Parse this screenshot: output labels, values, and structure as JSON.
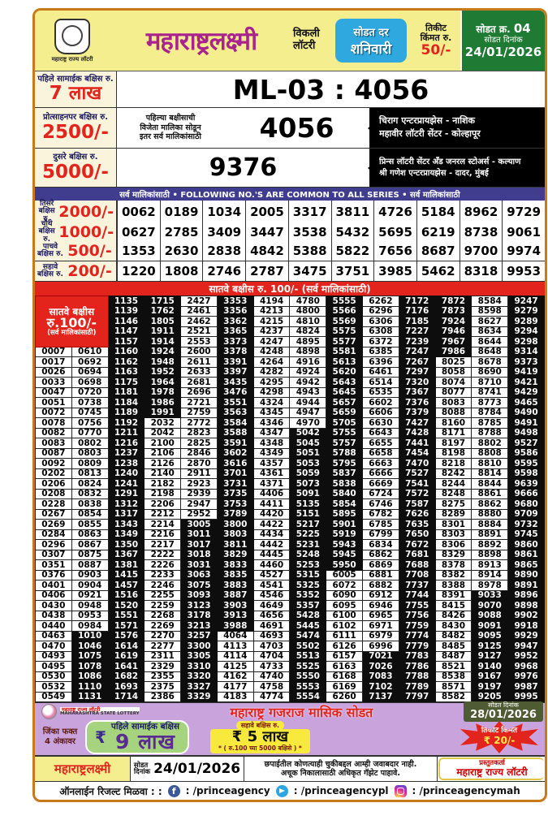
{
  "header": {
    "org_small": "महाराष्ट्र राज्य लॉटरी",
    "title": "महाराष्ट्रलक्ष्मी",
    "weekly_line1": "विकली",
    "weekly_line2": "लॉटरी",
    "draw_day_label": "सोडत दर",
    "draw_day": "शनिवारी",
    "ticket_label1": "तिकीट",
    "ticket_label2": "किंमत रु.",
    "ticket_price": "50/-",
    "draw_no_label": "सोडत क्र.",
    "draw_no": "04",
    "draw_date_label": "सोडत दिनांक",
    "draw_date": "24/01/2026",
    "accent_yellow": "#f5ee8e",
    "accent_magenta": "#a9238f",
    "accent_blue": "#2fa8df",
    "accent_green": "#1f7a33"
  },
  "first_prize": {
    "label": "पहिले सामाईक बक्षिस रु.",
    "amount": "7 लाख",
    "result": "ML-03 : 4056"
  },
  "consolation": {
    "label": "प्रोत्साहनपर बक्षिस रु.",
    "amount": "2500/-",
    "note1": "पहिल्या बक्षीसाची",
    "note2": "विजेता मालिका सोडून",
    "note3": "इतर सर्व मालिकांसाठी",
    "number": "4056",
    "sellers": [
      "चिराग एन्टरप्रायझेस - नाशिक",
      "महावीर लॉटरी सेंटर - कोल्हापूर"
    ]
  },
  "second_prize": {
    "label": "दुसरे बक्षिस रु.",
    "amount": "5000/-",
    "number": "9376",
    "sellers": [
      "प्रिन्स लॉटरी सेंटर अँड जनरल स्टोअर्स - कल्याण",
      "श्री गणेश एन्टरप्रायझेस - दादर, मुंबई"
    ]
  },
  "common_bar": "सर्व मालिकांसाठी  •  FOLLOWING NO.'S ARE COMMON TO ALL SERIES  •  सर्व मालिकांसाठी",
  "common_prizes": [
    {
      "label1": "तिसरे",
      "label2": "बक्षिस रु.",
      "amount": "2000/-",
      "numbers": [
        "0062",
        "0189",
        "1034",
        "2005",
        "3317",
        "3811",
        "4726",
        "5184",
        "8962",
        "9729"
      ]
    },
    {
      "label1": "चौथे",
      "label2": "बक्षिस रु.",
      "amount": "1000/-",
      "numbers": [
        "0627",
        "2785",
        "3409",
        "3447",
        "3538",
        "5432",
        "5695",
        "6219",
        "8738",
        "9061"
      ]
    },
    {
      "label1": "पाचवे",
      "label2": "बक्षिस रु.",
      "amount": "500/-",
      "numbers": [
        "1353",
        "2630",
        "2838",
        "4842",
        "5388",
        "5822",
        "7656",
        "8687",
        "9700",
        "9974"
      ]
    },
    {
      "label1": "सहावे",
      "label2": "बक्षिस रु.",
      "amount": "200/-",
      "numbers": [
        "1220",
        "1808",
        "2746",
        "2787",
        "3475",
        "3751",
        "3985",
        "5462",
        "8318",
        "9953"
      ]
    }
  ],
  "seventh_bar": "सातवे बक्षीस रु. 100/-  (सर्व मालिकांसाठी)",
  "seventh_prize": {
    "box_lines": [
      "सातवे बक्षीस",
      "रु.100/-",
      "(सर्व मालिकांसाठी)"
    ],
    "left_col1": [
      "0007",
      "0017",
      "0026",
      "0033",
      "0047",
      "0051",
      "0072",
      "0078",
      "0082",
      "0083",
      "0087",
      "0092",
      "0202",
      "0206",
      "0208",
      "0228",
      "0267",
      "0269",
      "0284",
      "0296",
      "0307",
      "0351",
      "0376",
      "0401",
      "0406",
      "0430",
      "0438",
      "0440",
      "0463",
      "0470",
      "0493",
      "0495",
      "0530",
      "0532",
      "0549"
    ],
    "left_col2": [
      "0610",
      "0692",
      "0694",
      "0698",
      "0720",
      "0738",
      "0745",
      "0756",
      "0770",
      "0802",
      "0803",
      "0809",
      "0813",
      "0824",
      "0832",
      "0838",
      "0854",
      "0855",
      "0863",
      "0867",
      "0875",
      "0887",
      "0903",
      "0904",
      "0921",
      "0948",
      "0953",
      "0984",
      "1010",
      "1046",
      "1075",
      "1078",
      "1086",
      "1110",
      "1131"
    ],
    "columns": [
      [
        "1135",
        "1139",
        "1146",
        "1147",
        "1157",
        "1160",
        "1162",
        "1163",
        "1175",
        "1181",
        "1184",
        "1189",
        "1192",
        "1211",
        "1216",
        "1237",
        "1238",
        "1240",
        "1241",
        "1291",
        "1312",
        "1317",
        "1343",
        "1349",
        "1350",
        "1367",
        "1381",
        "1415",
        "1457",
        "1516",
        "1520",
        "1551",
        "1571",
        "1576",
        "1614",
        "1619",
        "1641",
        "1682",
        "1693",
        "1714"
      ],
      [
        "1715",
        "1762",
        "1805",
        "1911",
        "1914",
        "1924",
        "1948",
        "1952",
        "1964",
        "1978",
        "1986",
        "1991",
        "2032",
        "2042",
        "2100",
        "2106",
        "2126",
        "2140",
        "2182",
        "2198",
        "2206",
        "2212",
        "2214",
        "2216",
        "2217",
        "2222",
        "2226",
        "2233",
        "2246",
        "2255",
        "2259",
        "2268",
        "2269",
        "2270",
        "2277",
        "2311",
        "2329",
        "2355",
        "2375",
        "2386"
      ],
      [
        "2427",
        "2461",
        "2462",
        "2521",
        "2553",
        "2600",
        "2611",
        "2633",
        "2681",
        "2696",
        "2721",
        "2759",
        "2772",
        "2823",
        "2825",
        "2846",
        "2870",
        "2911",
        "2923",
        "2939",
        "2947",
        "2952",
        "3005",
        "3011",
        "3017",
        "3018",
        "3031",
        "3063",
        "3075",
        "3093",
        "3123",
        "3178",
        "3213",
        "3257",
        "3300",
        "3305",
        "3310",
        "3320",
        "3327",
        "3329"
      ],
      [
        "3353",
        "3356",
        "3362",
        "3365",
        "3373",
        "3378",
        "3391",
        "3397",
        "3435",
        "3476",
        "3551",
        "3563",
        "3584",
        "3588",
        "3591",
        "3602",
        "3616",
        "3701",
        "3731",
        "3735",
        "3753",
        "3789",
        "3800",
        "3803",
        "3811",
        "3829",
        "3833",
        "3835",
        "3883",
        "3887",
        "3903",
        "3913",
        "3988",
        "4064",
        "4113",
        "4114",
        "4125",
        "4162",
        "4177",
        "4183"
      ],
      [
        "4194",
        "4213",
        "4215",
        "4237",
        "4247",
        "4248",
        "4264",
        "4282",
        "4295",
        "4298",
        "4324",
        "4345",
        "4346",
        "4347",
        "4348",
        "4349",
        "4357",
        "4361",
        "4371",
        "4406",
        "4411",
        "4420",
        "4422",
        "4434",
        "4442",
        "4445",
        "4460",
        "4527",
        "4541",
        "4546",
        "4649",
        "4656",
        "4691",
        "4693",
        "4703",
        "4704",
        "4733",
        "4740",
        "4758",
        "4774"
      ],
      [
        "4780",
        "4800",
        "4810",
        "4824",
        "4895",
        "4898",
        "4916",
        "4924",
        "4942",
        "4943",
        "4944",
        "4947",
        "4970",
        "5042",
        "5045",
        "5051",
        "5053",
        "5059",
        "5073",
        "5091",
        "5135",
        "5151",
        "5217",
        "5225",
        "5231",
        "5248",
        "5253",
        "5315",
        "5325",
        "5352",
        "5357",
        "5428",
        "5445",
        "5474",
        "5502",
        "5513",
        "5525",
        "5550",
        "5553",
        "5554"
      ],
      [
        "5555",
        "5566",
        "5569",
        "5575",
        "5577",
        "5581",
        "5613",
        "5620",
        "5643",
        "5645",
        "5657",
        "5659",
        "5705",
        "5755",
        "5757",
        "5788",
        "5795",
        "5837",
        "5838",
        "5840",
        "5854",
        "5895",
        "5901",
        "5919",
        "5943",
        "5945",
        "5950",
        "6005",
        "6072",
        "6090",
        "6095",
        "6100",
        "6102",
        "6111",
        "6126",
        "6157",
        "6163",
        "6168",
        "6169",
        "6260"
      ],
      [
        "6262",
        "6296",
        "6306",
        "6308",
        "6372",
        "6385",
        "6396",
        "6461",
        "6514",
        "6535",
        "6602",
        "6606",
        "6630",
        "6643",
        "6655",
        "6658",
        "6663",
        "6666",
        "6669",
        "6724",
        "6746",
        "6782",
        "6785",
        "6799",
        "6834",
        "6862",
        "6869",
        "6881",
        "6882",
        "6912",
        "6946",
        "6965",
        "6971",
        "6979",
        "6996",
        "7021",
        "7026",
        "7083",
        "7102",
        "7137"
      ],
      [
        "7172",
        "7176",
        "7185",
        "7227",
        "7239",
        "7247",
        "7267",
        "7297",
        "7320",
        "7367",
        "7376",
        "7379",
        "7427",
        "7428",
        "7441",
        "7454",
        "7470",
        "7527",
        "7541",
        "7572",
        "7587",
        "7626",
        "7635",
        "7650",
        "7672",
        "7681",
        "7688",
        "7708",
        "7737",
        "7744",
        "7755",
        "7756",
        "7759",
        "7774",
        "7779",
        "7783",
        "7786",
        "7788",
        "7789",
        "7797"
      ],
      [
        "7872",
        "7873",
        "7924",
        "7946",
        "7967",
        "7986",
        "8025",
        "8058",
        "8074",
        "8077",
        "8083",
        "8088",
        "8160",
        "8171",
        "8197",
        "8198",
        "8218",
        "8242",
        "8244",
        "8248",
        "8275",
        "8289",
        "8301",
        "8303",
        "8306",
        "8329",
        "8378",
        "8382",
        "8388",
        "8391",
        "8415",
        "8426",
        "8430",
        "8482",
        "8485",
        "8487",
        "8521",
        "8538",
        "8571",
        "8582"
      ],
      [
        "8584",
        "8598",
        "8627",
        "8634",
        "8644",
        "8648",
        "8678",
        "8690",
        "8710",
        "8741",
        "8773",
        "8784",
        "8785",
        "8788",
        "8802",
        "8808",
        "8810",
        "8814",
        "8844",
        "8861",
        "8862",
        "8880",
        "8884",
        "8891",
        "8892",
        "8898",
        "8913",
        "8914",
        "8978",
        "9033",
        "9070",
        "9088",
        "9091",
        "9095",
        "9125",
        "9127",
        "9140",
        "9167",
        "9197",
        "9205"
      ],
      [
        "9247",
        "9279",
        "9289",
        "9294",
        "9298",
        "9314",
        "9373",
        "9419",
        "9421",
        "9429",
        "9465",
        "9490",
        "9491",
        "9498",
        "9527",
        "9586",
        "9595",
        "9598",
        "9639",
        "9666",
        "9680",
        "9709",
        "9732",
        "9745",
        "9860",
        "9861",
        "9865",
        "9890",
        "9891",
        "9896",
        "9898",
        "9902",
        "9918",
        "9929",
        "9947",
        "9952",
        "9968",
        "9976",
        "9987",
        "9995"
      ]
    ]
  },
  "banner": {
    "org_line1": "महाराष्ट्र राज्य लॉटरी",
    "org_line2": "MAHARASHTRA STATE LOTTERY",
    "title": "महाराष्ट्र गजराज मासिक सोडत",
    "date_label": "सोडत दिनांक",
    "date": "28/01/2026",
    "win_label1": "जिंका फक्त",
    "win_label2": "4 अंकावर",
    "rupee": "₹",
    "first_prize_label": "पहिले सामाईक बक्षिस",
    "first_prize_amount": "9 लाख",
    "sixth_label": "सहावे बक्षिस रु.",
    "sixth_amount": "₹ 5 लाख",
    "sixth_note": "* ( रु.100 च्या 5000 बक्षिसे ) *",
    "ticket_label": "तिकीट किंमत",
    "ticket_price": "₹ 20/-",
    "bg_color": "#c9a3dc"
  },
  "footer": {
    "brand": "महाराष्ट्रलक्ष्मी",
    "date_label1": "सोडत",
    "date_label2": "दिनांक",
    "date": "24/01/2026",
    "disclaimer1": "छपाईतील कोणत्याही चुकीबद्दल आम्ही जवाबदार नाही.",
    "disclaimer2": "अचूक निकालासाठी अधिकृत गॅझेट पाहावे.",
    "presenter_label": "प्रस्तुतकर्ता",
    "presenter": "महाराष्ट्र राज्य लॉटरी"
  },
  "social": {
    "label": "ऑनलाईन रिजल्ट मिळवा : :",
    "facebook_icon": "f",
    "facebook": ": /princeagency",
    "telegram": ": /princeagencypl",
    "instagram": ": /princeagencymah"
  }
}
